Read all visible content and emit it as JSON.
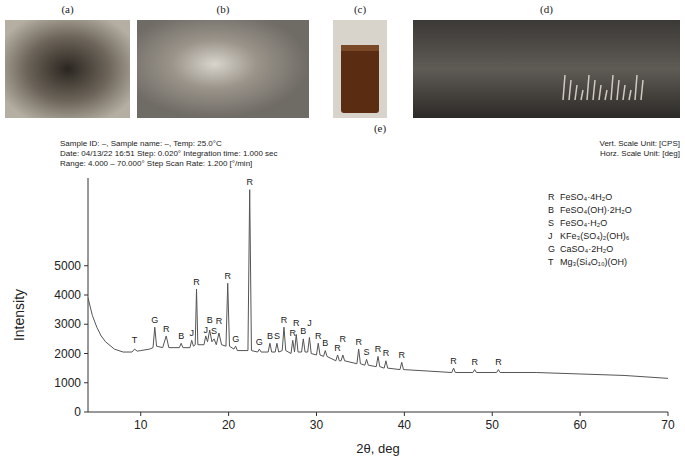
{
  "figure": {
    "panel_labels": [
      "(a)",
      "(b)",
      "(c)",
      "(d)"
    ]
  },
  "chart_data": {
    "type": "line",
    "panel_label": "(e)",
    "header": [
      "Sample ID: –, Sample name: –, Temp: 25.0°C",
      "Date: 04/13/22 16:51 Step: 0.020° Integration time: 1.000 sec",
      "Range: 4.000 – 70.000° Step Scan Rate: 1.200 [°/min]"
    ],
    "header_right": [
      "Vert. Scale Unit: [CPS]",
      "Horz. Scale Unit: [deg]"
    ],
    "x_label": "2θ, deg",
    "y_label": "Intensity",
    "xlim": [
      4,
      70
    ],
    "xticks": [
      10,
      20,
      30,
      40,
      50,
      60,
      70
    ],
    "ylim": [
      0,
      8000
    ],
    "yticks": [
      0,
      1000,
      2000,
      3000,
      4000,
      5000
    ],
    "grid": false,
    "legend": "upper right",
    "legend_entries": [
      {
        "symbol": "R",
        "text": "FeSO₄·4H₂O"
      },
      {
        "symbol": "B",
        "text": "FeSO₄(OH)·2H₂O"
      },
      {
        "symbol": "S",
        "text": "FeSO₄·H₂O"
      },
      {
        "symbol": "J",
        "text": "KFe₃(SO₄)₂(OH)₆"
      },
      {
        "symbol": "G",
        "text": "CaSO₄·2H₂O"
      },
      {
        "symbol": "T",
        "text": "Mg₃(Si₄O₁₀)(OH)"
      }
    ],
    "x": [
      4,
      4.5,
      5,
      5.5,
      6,
      7,
      8,
      9,
      9.3,
      9.6,
      10,
      11,
      11.4,
      11.6,
      11.8,
      12.5,
      12.9,
      13.2,
      14.4,
      14.6,
      14.8,
      15.6,
      15.8,
      16,
      16.2,
      16.35,
      16.5,
      17.2,
      17.4,
      17.6,
      17.85,
      18.1,
      18.35,
      18.6,
      18.9,
      19.2,
      19.7,
      19.9,
      20.1,
      20.6,
      20.8,
      21,
      22.2,
      22.4,
      22.6,
      23.3,
      23.5,
      23.7,
      24.5,
      24.7,
      24.9,
      25.3,
      25.5,
      25.7,
      26.1,
      26.3,
      26.5,
      27.1,
      27.3,
      27.5,
      27.7,
      27.9,
      28.3,
      28.5,
      28.7,
      29,
      29.2,
      29.4,
      30,
      30.2,
      30.4,
      30.8,
      31,
      31.2,
      32.2,
      32.4,
      32.6,
      32.8,
      33,
      33.2,
      34.6,
      34.8,
      35,
      35.5,
      35.7,
      35.9,
      36.8,
      37,
      37.2,
      37.7,
      37.9,
      38.1,
      39.5,
      39.7,
      39.9,
      45.4,
      45.6,
      45.8,
      47.8,
      48,
      48.2,
      50.5,
      50.7,
      50.9,
      55,
      60,
      65,
      70
    ],
    "series": [
      {
        "color": "#555555",
        "values": [
          3900,
          3300,
          2900,
          2600,
          2400,
          2150,
          2050,
          2050,
          2150,
          2080,
          2100,
          2150,
          2200,
          2900,
          2250,
          2200,
          2600,
          2200,
          2200,
          2350,
          2200,
          2200,
          2450,
          2250,
          2300,
          4200,
          2300,
          2300,
          2600,
          2400,
          2800,
          2400,
          2500,
          2300,
          2700,
          2300,
          2250,
          4400,
          2250,
          2150,
          2250,
          2100,
          2100,
          7600,
          2100,
          2050,
          2150,
          2050,
          2050,
          2350,
          2050,
          2050,
          2350,
          2050,
          2100,
          2900,
          2100,
          2000,
          2450,
          2050,
          2650,
          2050,
          2050,
          2500,
          2050,
          2050,
          2550,
          2000,
          1950,
          2350,
          1950,
          1900,
          2100,
          1900,
          1750,
          1950,
          1750,
          1750,
          1950,
          1750,
          1650,
          2150,
          1650,
          1600,
          1800,
          1600,
          1550,
          1900,
          1550,
          1500,
          1750,
          1500,
          1450,
          1700,
          1450,
          1350,
          1500,
          1350,
          1350,
          1450,
          1350,
          1350,
          1450,
          1350,
          1350,
          1300,
          1250,
          1150
        ]
      }
    ],
    "annotations": [
      {
        "text": "T",
        "x": 9.3,
        "y": 2350
      },
      {
        "text": "G",
        "x": 11.6,
        "y": 3050
      },
      {
        "text": "R",
        "x": 12.9,
        "y": 2750
      },
      {
        "text": "B",
        "x": 14.6,
        "y": 2500
      },
      {
        "text": "J",
        "x": 15.8,
        "y": 2600
      },
      {
        "text": "R",
        "x": 16.35,
        "y": 4350
      },
      {
        "text": "J",
        "x": 17.4,
        "y": 2700
      },
      {
        "text": "B",
        "x": 17.85,
        "y": 3050
      },
      {
        "text": "S",
        "x": 18.35,
        "y": 2650
      },
      {
        "text": "R",
        "x": 18.9,
        "y": 3000
      },
      {
        "text": "R",
        "x": 19.9,
        "y": 4550
      },
      {
        "text": "G",
        "x": 20.8,
        "y": 2400
      },
      {
        "text": "R",
        "x": 22.4,
        "y": 7750
      },
      {
        "text": "G",
        "x": 23.5,
        "y": 2300
      },
      {
        "text": "B",
        "x": 24.7,
        "y": 2500
      },
      {
        "text": "S",
        "x": 25.5,
        "y": 2500
      },
      {
        "text": "R",
        "x": 26.3,
        "y": 3050
      },
      {
        "text": "R",
        "x": 27.3,
        "y": 2600
      },
      {
        "text": "R",
        "x": 27.7,
        "y": 2950
      },
      {
        "text": "B",
        "x": 28.5,
        "y": 2650
      },
      {
        "text": "J",
        "x": 29.2,
        "y": 2950
      },
      {
        "text": "R",
        "x": 30.2,
        "y": 2500
      },
      {
        "text": "B",
        "x": 31.0,
        "y": 2250
      },
      {
        "text": "R",
        "x": 32.4,
        "y": 2100
      },
      {
        "text": "R",
        "x": 33.0,
        "y": 2400
      },
      {
        "text": "R",
        "x": 34.8,
        "y": 2300
      },
      {
        "text": "S",
        "x": 35.7,
        "y": 1950
      },
      {
        "text": "R",
        "x": 37.0,
        "y": 2050
      },
      {
        "text": "R",
        "x": 37.9,
        "y": 1900
      },
      {
        "text": "R",
        "x": 39.7,
        "y": 1850
      },
      {
        "text": "R",
        "x": 45.6,
        "y": 1650
      },
      {
        "text": "R",
        "x": 48.0,
        "y": 1600
      },
      {
        "text": "R",
        "x": 50.7,
        "y": 1600
      }
    ]
  }
}
